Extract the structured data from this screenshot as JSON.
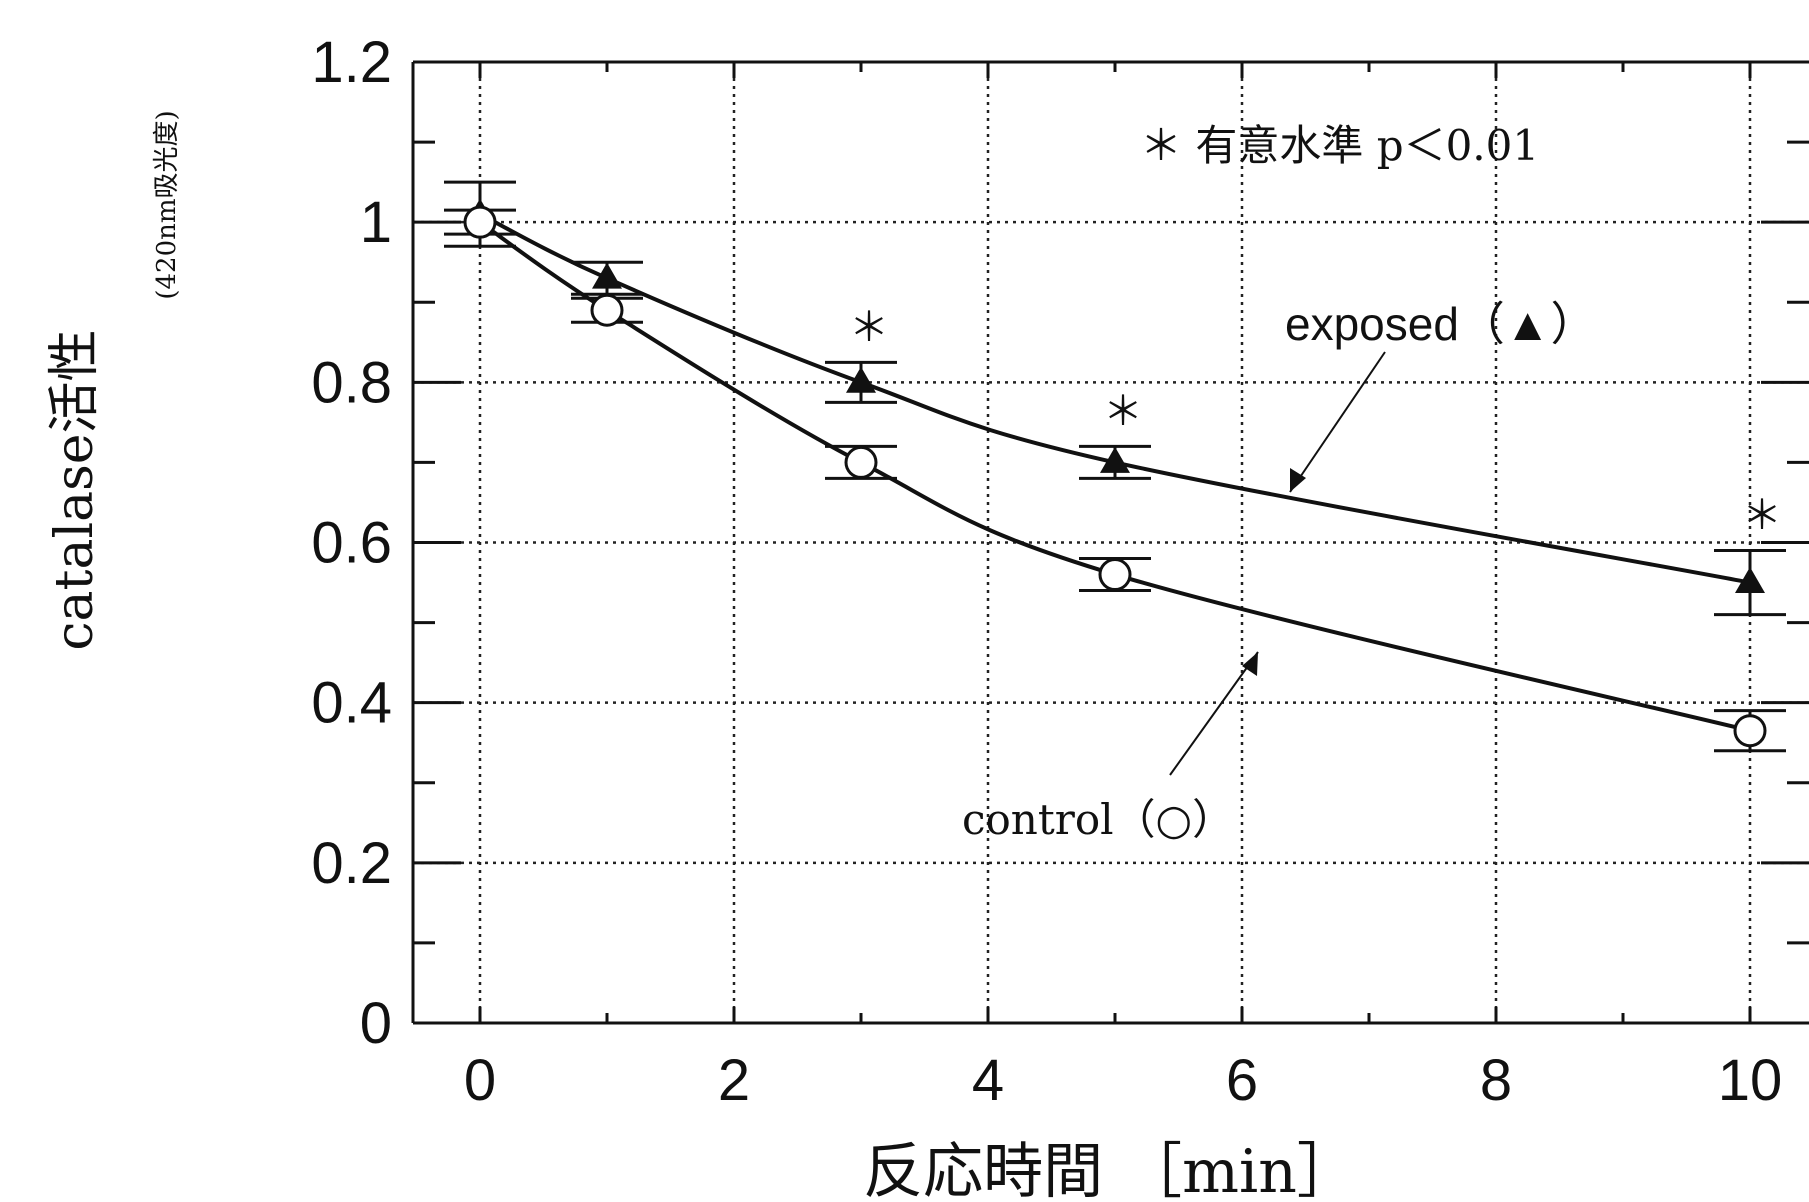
{
  "chart_data": {
    "type": "line",
    "ylabel": "catalase活性",
    "ylabel_sub": "(420nm吸光度)",
    "xlabel": "反応時間 ［min］",
    "xlim": [
      -0.5,
      10.5
    ],
    "ylim": [
      0,
      1.2
    ],
    "x_ticks": [
      0,
      2,
      4,
      6,
      8,
      10
    ],
    "x_tick_labels": [
      "0",
      "2",
      "4",
      "6",
      "8",
      "10"
    ],
    "y_ticks": [
      0,
      0.2,
      0.4,
      0.6,
      0.8,
      1,
      1.2
    ],
    "y_tick_labels": [
      "0",
      "0.2",
      "0.4",
      "0.6",
      "0.8",
      "1",
      "1.2"
    ],
    "grid": true,
    "series": [
      {
        "name": "exposed",
        "marker": "triangle",
        "x": [
          0,
          1,
          3,
          5,
          10
        ],
        "y": [
          1.01,
          0.93,
          0.8,
          0.7,
          0.55
        ],
        "error": [
          0.04,
          0.02,
          0.025,
          0.02,
          0.04
        ]
      },
      {
        "name": "control",
        "marker": "circle",
        "x": [
          0,
          1,
          3,
          5,
          10
        ],
        "y": [
          1.0,
          0.89,
          0.7,
          0.56,
          0.365
        ],
        "error": [
          0.015,
          0.015,
          0.02,
          0.02,
          0.025
        ]
      }
    ],
    "annotations": {
      "significance": "＊ 有意水準  p＜0.01",
      "exposed_label": "exposed（▲）",
      "control_label": "control（○）",
      "star": "＊",
      "significant_x": [
        3,
        5,
        10
      ]
    }
  }
}
